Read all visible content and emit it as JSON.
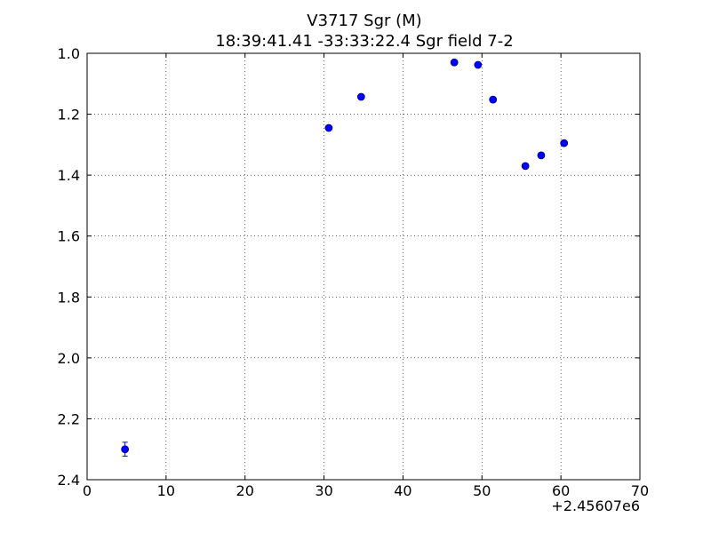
{
  "chart_data": {
    "type": "scatter",
    "title": "V3717 Sgr  (M)",
    "subtitle": "18:39:41.41 -33:33:22.4 Sgr field 7-2",
    "x_offset_label": "+2.45607e6",
    "series": [
      {
        "color": "#0000ff",
        "x": [
          4.8,
          30.6,
          34.7,
          46.5,
          49.5,
          51.4,
          55.5,
          57.5,
          60.4
        ],
        "values": [
          2.3,
          1.245,
          1.143,
          1.03,
          1.038,
          1.152,
          1.37,
          1.335,
          1.295
        ],
        "errors": [
          0.023,
          0.006,
          0.006,
          0.005,
          0.005,
          0.007,
          0.006,
          0.006,
          0.006
        ]
      }
    ],
    "xlim": [
      0,
      70
    ],
    "xticks": [
      0,
      10,
      20,
      30,
      40,
      50,
      60,
      70
    ],
    "ylim": [
      2.4,
      1.0
    ],
    "yticks": [
      {
        "value": 1.0,
        "label": "1.0"
      },
      1.2,
      1.4,
      1.6,
      1.8,
      {
        "value": 2.0,
        "label": "2.0"
      },
      2.2,
      2.4
    ],
    "grid": true
  }
}
